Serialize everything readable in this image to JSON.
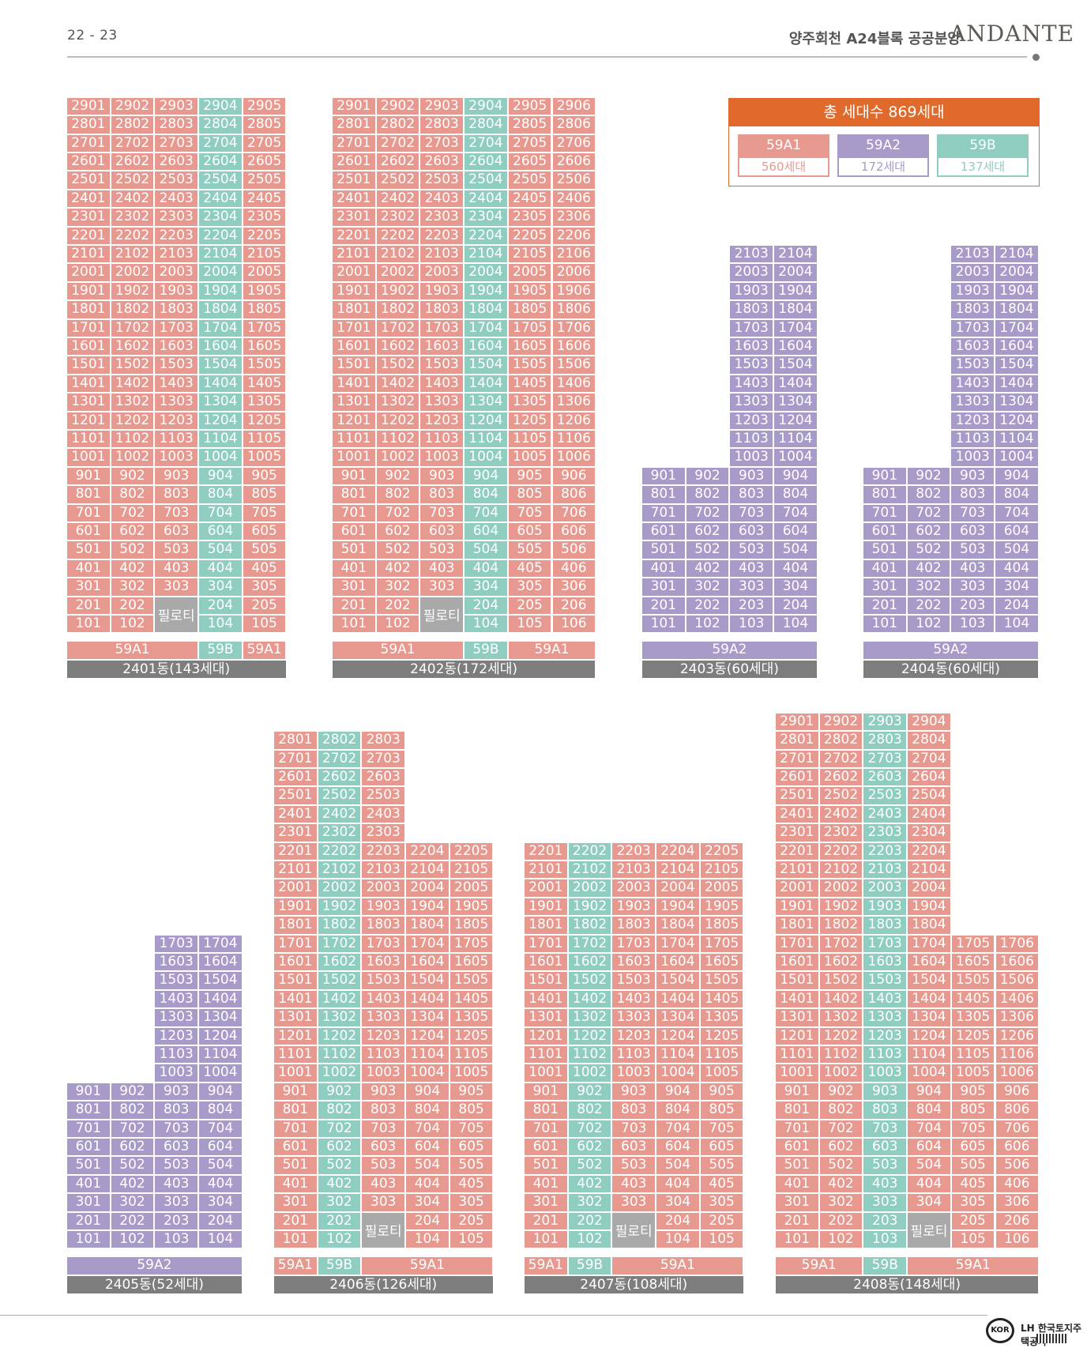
{
  "header": {
    "page_number": "22 - 23",
    "title": "양주회천 A24블록 공공분양",
    "logo_text": "ANDANTE"
  },
  "legend": {
    "title": "총 세대수 869세대",
    "items": [
      {
        "type": "59A1",
        "count": "560세대",
        "color": "#e8998f"
      },
      {
        "type": "59A2",
        "count": "172세대",
        "color": "#a89bc9"
      },
      {
        "type": "59B",
        "count": "137세대",
        "color": "#8ecdbf"
      }
    ]
  },
  "colors": {
    "59A1": "#e8998f",
    "59A2": "#a89bc9",
    "59B": "#8ecdbf",
    "piloti": "#a9a9a9",
    "name_bar": "#7d7d7d",
    "accent": "#e06a2c"
  },
  "piloti_label": "필로티",
  "buildings": [
    {
      "name": "2401동(143세대)",
      "top_floor": 29,
      "columns": [
        {
          "line": 1,
          "type": "59A1",
          "floors": [
            1,
            29
          ]
        },
        {
          "line": 2,
          "type": "59A1",
          "floors": [
            1,
            29
          ]
        },
        {
          "line": 3,
          "type": "59A1",
          "floors": [
            3,
            29
          ],
          "piloti": true
        },
        {
          "line": 4,
          "type": "59B",
          "floors": [
            1,
            29
          ]
        },
        {
          "line": 5,
          "type": "59A1",
          "floors": [
            1,
            29
          ]
        }
      ],
      "type_bar": [
        {
          "label": "59A1",
          "span": 3
        },
        {
          "label": "59B",
          "span": 1
        },
        {
          "label": "59A1",
          "span": 1
        }
      ]
    },
    {
      "name": "2402동(172세대)",
      "top_floor": 29,
      "columns": [
        {
          "line": 1,
          "type": "59A1",
          "floors": [
            1,
            29
          ]
        },
        {
          "line": 2,
          "type": "59A1",
          "floors": [
            1,
            29
          ]
        },
        {
          "line": 3,
          "type": "59A1",
          "floors": [
            3,
            29
          ],
          "piloti": true
        },
        {
          "line": 4,
          "type": "59B",
          "floors": [
            1,
            29
          ]
        },
        {
          "line": 5,
          "type": "59A1",
          "floors": [
            1,
            29
          ]
        },
        {
          "line": 6,
          "type": "59A1",
          "floors": [
            1,
            29
          ]
        }
      ],
      "type_bar": [
        {
          "label": "59A1",
          "span": 3
        },
        {
          "label": "59B",
          "span": 1
        },
        {
          "label": "59A1",
          "span": 2
        }
      ]
    },
    {
      "name": "2403동(60세대)",
      "top_floor": 29,
      "columns": [
        {
          "line": 1,
          "type": "59A2",
          "floors": [
            1,
            9
          ]
        },
        {
          "line": 2,
          "type": "59A2",
          "floors": [
            1,
            9
          ]
        },
        {
          "line": 3,
          "type": "59A2",
          "floors": [
            1,
            21
          ]
        },
        {
          "line": 4,
          "type": "59A2",
          "floors": [
            1,
            21
          ]
        }
      ],
      "type_bar": [
        {
          "label": "59A2",
          "span": 4
        }
      ]
    },
    {
      "name": "2404동(60세대)",
      "top_floor": 29,
      "columns": [
        {
          "line": 1,
          "type": "59A2",
          "floors": [
            1,
            9
          ]
        },
        {
          "line": 2,
          "type": "59A2",
          "floors": [
            1,
            9
          ]
        },
        {
          "line": 3,
          "type": "59A2",
          "floors": [
            1,
            21
          ]
        },
        {
          "line": 4,
          "type": "59A2",
          "floors": [
            1,
            21
          ]
        }
      ],
      "type_bar": [
        {
          "label": "59A2",
          "span": 4
        }
      ]
    },
    {
      "name": "2405동(52세대)",
      "top_floor": 29,
      "columns": [
        {
          "line": 1,
          "type": "59A2",
          "floors": [
            1,
            9
          ]
        },
        {
          "line": 2,
          "type": "59A2",
          "floors": [
            1,
            9
          ]
        },
        {
          "line": 3,
          "type": "59A2",
          "floors": [
            1,
            17
          ]
        },
        {
          "line": 4,
          "type": "59A2",
          "floors": [
            1,
            17
          ]
        }
      ],
      "type_bar": [
        {
          "label": "59A2",
          "span": 4
        }
      ]
    },
    {
      "name": "2406동(126세대)",
      "top_floor": 29,
      "columns": [
        {
          "line": 1,
          "type": "59A1",
          "floors": [
            1,
            28
          ]
        },
        {
          "line": 2,
          "type": "59B",
          "floors": [
            1,
            28
          ]
        },
        {
          "line": 3,
          "type": "59A1",
          "floors": [
            3,
            28
          ],
          "piloti": true
        },
        {
          "line": 4,
          "type": "59A1",
          "floors": [
            1,
            22
          ]
        },
        {
          "line": 5,
          "type": "59A1",
          "floors": [
            1,
            22
          ]
        }
      ],
      "type_bar": [
        {
          "label": "59A1",
          "span": 1
        },
        {
          "label": "59B",
          "span": 1
        },
        {
          "label": "59A1",
          "span": 3
        }
      ]
    },
    {
      "name": "2407동(108세대)",
      "top_floor": 29,
      "columns": [
        {
          "line": 1,
          "type": "59A1",
          "floors": [
            1,
            22
          ]
        },
        {
          "line": 2,
          "type": "59B",
          "floors": [
            1,
            22
          ]
        },
        {
          "line": 3,
          "type": "59A1",
          "floors": [
            3,
            22
          ],
          "piloti": true
        },
        {
          "line": 4,
          "type": "59A1",
          "floors": [
            1,
            22
          ]
        },
        {
          "line": 5,
          "type": "59A1",
          "floors": [
            1,
            22
          ]
        }
      ],
      "type_bar": [
        {
          "label": "59A1",
          "span": 1
        },
        {
          "label": "59B",
          "span": 1
        },
        {
          "label": "59A1",
          "span": 3
        }
      ]
    },
    {
      "name": "2408동(148세대)",
      "top_floor": 29,
      "columns": [
        {
          "line": 1,
          "type": "59A1",
          "floors": [
            1,
            29
          ]
        },
        {
          "line": 2,
          "type": "59A1",
          "floors": [
            1,
            29
          ]
        },
        {
          "line": 3,
          "type": "59B",
          "floors": [
            1,
            29
          ]
        },
        {
          "line": 4,
          "type": "59A1",
          "floors": [
            3,
            29
          ],
          "piloti": true
        },
        {
          "line": 5,
          "type": "59A1",
          "floors": [
            1,
            17
          ]
        },
        {
          "line": 6,
          "type": "59A1",
          "floors": [
            1,
            17
          ]
        }
      ],
      "type_bar": [
        {
          "label": "59A1",
          "span": 2
        },
        {
          "label": "59B",
          "span": 1
        },
        {
          "label": "59A1",
          "span": 3
        }
      ]
    }
  ],
  "footer": {
    "org_badge": "KOR",
    "org_name": "LH 한국토지주택공사"
  }
}
